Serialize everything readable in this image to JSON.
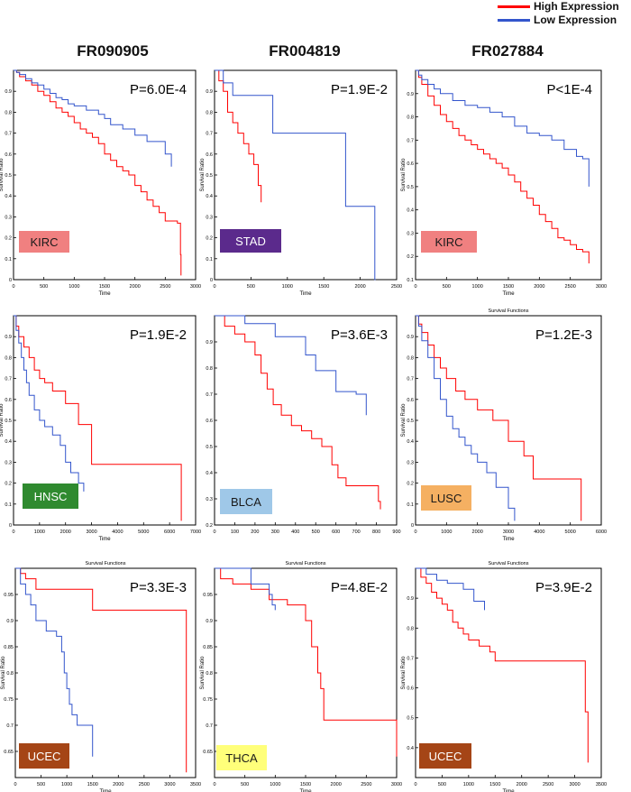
{
  "legend": {
    "high": {
      "label": "High Expression",
      "color": "#ff0000"
    },
    "low": {
      "label": "Low Expression",
      "color": "#3355cc"
    }
  },
  "columns": [
    "FR090905",
    "FR004819",
    "FR027884"
  ],
  "chart_data": [
    {
      "type": "line",
      "cancer": "KIRC",
      "badge_color": "#f08080",
      "badge_text_color": "#1a1a1a",
      "pvalue": "P=6.0E-4",
      "title": "",
      "xlabel": "Time",
      "ylabel": "Survival Ratio",
      "xlim": [
        0,
        3000
      ],
      "ylim": [
        0,
        1.0
      ],
      "xticks": [
        0,
        500,
        1000,
        1500,
        2000,
        2500,
        3000
      ],
      "yticks": [
        0,
        0.1,
        0.2,
        0.3,
        0.4,
        0.5,
        0.6,
        0.7,
        0.8,
        0.9
      ],
      "ytick_labels": [
        "0",
        "0.1",
        "0.2",
        "0.3",
        "0.4",
        "0.5",
        "0.6",
        "0.7",
        "0.8",
        "0.9"
      ],
      "series": [
        {
          "name": "High Expression",
          "color": "#ff0000",
          "x": [
            0,
            50,
            100,
            200,
            300,
            400,
            500,
            600,
            700,
            800,
            900,
            1000,
            1100,
            1200,
            1300,
            1400,
            1500,
            1600,
            1700,
            1800,
            1900,
            2000,
            2100,
            2200,
            2300,
            2400,
            2500,
            2600,
            2700,
            2750,
            2760
          ],
          "y": [
            1.0,
            0.99,
            0.97,
            0.95,
            0.93,
            0.9,
            0.88,
            0.85,
            0.82,
            0.8,
            0.78,
            0.75,
            0.72,
            0.7,
            0.68,
            0.65,
            0.6,
            0.57,
            0.54,
            0.52,
            0.5,
            0.45,
            0.42,
            0.38,
            0.35,
            0.32,
            0.28,
            0.28,
            0.27,
            0.12,
            0.02
          ]
        },
        {
          "name": "Low Expression",
          "color": "#3355cc",
          "x": [
            0,
            50,
            100,
            200,
            300,
            400,
            500,
            600,
            700,
            800,
            900,
            1000,
            1200,
            1400,
            1500,
            1600,
            1800,
            2000,
            2200,
            2400,
            2500,
            2600
          ],
          "y": [
            1.0,
            0.99,
            0.98,
            0.96,
            0.94,
            0.93,
            0.91,
            0.89,
            0.87,
            0.86,
            0.84,
            0.83,
            0.81,
            0.79,
            0.77,
            0.74,
            0.72,
            0.69,
            0.66,
            0.66,
            0.6,
            0.54
          ]
        }
      ]
    },
    {
      "type": "line",
      "cancer": "STAD",
      "badge_color": "#5b2a8c",
      "badge_text_color": "#ffffff",
      "pvalue": "P=1.9E-2",
      "title": "",
      "xlabel": "Time",
      "ylabel": "Survival Ratio",
      "xlim": [
        0,
        2500
      ],
      "ylim": [
        0,
        1.0
      ],
      "xticks": [
        0,
        500,
        1000,
        1500,
        2000,
        2500
      ],
      "yticks": [
        0,
        0.1,
        0.2,
        0.3,
        0.4,
        0.5,
        0.6,
        0.7,
        0.8,
        0.9
      ],
      "ytick_labels": [
        "0",
        "0.1",
        "0.2",
        "0.3",
        "0.4",
        "0.5",
        "0.6",
        "0.7",
        "0.8",
        "0.9"
      ],
      "series": [
        {
          "name": "High Expression",
          "color": "#ff0000",
          "x": [
            0,
            60,
            120,
            180,
            250,
            320,
            400,
            470,
            540,
            600,
            640
          ],
          "y": [
            1.0,
            0.95,
            0.9,
            0.8,
            0.75,
            0.7,
            0.65,
            0.6,
            0.55,
            0.45,
            0.37
          ]
        },
        {
          "name": "Low Expression",
          "color": "#3355cc",
          "x": [
            0,
            120,
            250,
            800,
            1800,
            2200,
            2210
          ],
          "y": [
            1.0,
            0.94,
            0.88,
            0.7,
            0.35,
            0.0,
            0.0
          ]
        }
      ]
    },
    {
      "type": "line",
      "cancer": "KIRC",
      "badge_color": "#f08080",
      "badge_text_color": "#1a1a1a",
      "pvalue": "P<1E-4",
      "title": "",
      "xlabel": "Time",
      "ylabel": "Survival Ratio",
      "xlim": [
        0,
        3000
      ],
      "ylim": [
        0.1,
        1.0
      ],
      "xticks": [
        0,
        500,
        1000,
        1500,
        2000,
        2500,
        3000
      ],
      "yticks": [
        0.1,
        0.2,
        0.3,
        0.4,
        0.5,
        0.6,
        0.7,
        0.8,
        0.9
      ],
      "ytick_labels": [
        "0.1",
        "0.2",
        "0.3",
        "0.4",
        "0.5",
        "0.6",
        "0.7",
        "0.8",
        "0.9"
      ],
      "series": [
        {
          "name": "High Expression",
          "color": "#ff0000",
          "x": [
            0,
            50,
            100,
            200,
            300,
            400,
            500,
            600,
            700,
            800,
            900,
            1000,
            1100,
            1200,
            1300,
            1400,
            1500,
            1600,
            1700,
            1800,
            1900,
            2000,
            2100,
            2200,
            2300,
            2400,
            2500,
            2600,
            2700,
            2800
          ],
          "y": [
            1.0,
            0.97,
            0.94,
            0.89,
            0.85,
            0.81,
            0.78,
            0.75,
            0.72,
            0.7,
            0.68,
            0.66,
            0.64,
            0.62,
            0.6,
            0.58,
            0.55,
            0.52,
            0.48,
            0.45,
            0.42,
            0.38,
            0.35,
            0.32,
            0.28,
            0.27,
            0.25,
            0.23,
            0.22,
            0.17
          ]
        },
        {
          "name": "Low Expression",
          "color": "#3355cc",
          "x": [
            0,
            50,
            100,
            200,
            300,
            400,
            600,
            800,
            1000,
            1200,
            1400,
            1600,
            1800,
            2000,
            2200,
            2400,
            2600,
            2700,
            2800
          ],
          "y": [
            1.0,
            0.98,
            0.96,
            0.94,
            0.92,
            0.9,
            0.87,
            0.85,
            0.84,
            0.82,
            0.8,
            0.76,
            0.73,
            0.72,
            0.7,
            0.66,
            0.63,
            0.62,
            0.5
          ]
        }
      ]
    },
    {
      "type": "line",
      "cancer": "HNSC",
      "badge_color": "#2f8a2f",
      "badge_text_color": "#ffffff",
      "pvalue": "P=1.9E-2",
      "title": "",
      "xlabel": "Time",
      "ylabel": "Survival Ratio",
      "xlim": [
        0,
        7000
      ],
      "ylim": [
        0,
        1.0
      ],
      "xticks": [
        0,
        1000,
        2000,
        3000,
        4000,
        5000,
        6000,
        7000
      ],
      "yticks": [
        0,
        0.1,
        0.2,
        0.3,
        0.4,
        0.5,
        0.6,
        0.7,
        0.8,
        0.9
      ],
      "ytick_labels": [
        "0",
        "0.1",
        "0.2",
        "0.3",
        "0.4",
        "0.5",
        "0.6",
        "0.7",
        "0.8",
        "0.9"
      ],
      "series": [
        {
          "name": "High Expression",
          "color": "#ff0000",
          "x": [
            0,
            100,
            200,
            400,
            600,
            800,
            1000,
            1200,
            1500,
            2000,
            2500,
            3000,
            6400,
            6450
          ],
          "y": [
            1.0,
            0.95,
            0.9,
            0.85,
            0.8,
            0.74,
            0.7,
            0.68,
            0.64,
            0.58,
            0.48,
            0.29,
            0.29,
            0.02
          ]
        },
        {
          "name": "Low Expression",
          "color": "#3355cc",
          "x": [
            0,
            100,
            200,
            300,
            400,
            500,
            600,
            800,
            1000,
            1200,
            1500,
            1800,
            2000,
            2200,
            2500,
            2700
          ],
          "y": [
            1.0,
            0.93,
            0.87,
            0.8,
            0.74,
            0.68,
            0.62,
            0.55,
            0.5,
            0.47,
            0.43,
            0.38,
            0.3,
            0.25,
            0.2,
            0.16
          ]
        }
      ]
    },
    {
      "type": "line",
      "cancer": "BLCA",
      "badge_color": "#9fc8e8",
      "badge_text_color": "#1a1a1a",
      "pvalue": "P=3.6E-3",
      "title": "",
      "xlabel": "",
      "ylabel": "",
      "xlim": [
        0,
        900
      ],
      "ylim": [
        0.2,
        1.0
      ],
      "xticks": [
        0,
        100,
        200,
        300,
        400,
        500,
        600,
        700,
        800,
        900
      ],
      "yticks": [
        0.2,
        0.3,
        0.4,
        0.5,
        0.6,
        0.7,
        0.8,
        0.9
      ],
      "ytick_labels": [
        "0.2",
        "0.3",
        "0.4",
        "0.5",
        "0.6",
        "0.7",
        "0.8",
        "0.9"
      ],
      "series": [
        {
          "name": "High Expression",
          "color": "#ff0000",
          "x": [
            0,
            50,
            100,
            150,
            200,
            230,
            260,
            290,
            330,
            380,
            430,
            480,
            530,
            580,
            610,
            650,
            700,
            760,
            810,
            820
          ],
          "y": [
            1.0,
            0.96,
            0.93,
            0.9,
            0.85,
            0.78,
            0.72,
            0.66,
            0.62,
            0.58,
            0.56,
            0.53,
            0.5,
            0.43,
            0.38,
            0.35,
            0.35,
            0.35,
            0.29,
            0.26
          ]
        },
        {
          "name": "Low Expression",
          "color": "#3355cc",
          "x": [
            0,
            150,
            300,
            450,
            500,
            600,
            700,
            750
          ],
          "y": [
            1.0,
            0.97,
            0.92,
            0.85,
            0.79,
            0.71,
            0.7,
            0.62
          ]
        }
      ]
    },
    {
      "type": "line",
      "cancer": "LUSC",
      "badge_color": "#f5b062",
      "badge_text_color": "#1a1a1a",
      "pvalue": "P=1.2E-3",
      "title": "Survival Functions",
      "xlabel": "Time",
      "ylabel": "Survival Ratio",
      "xlim": [
        0,
        6000
      ],
      "ylim": [
        0,
        1.0
      ],
      "xticks": [
        0,
        1000,
        2000,
        3000,
        4000,
        5000,
        6000
      ],
      "yticks": [
        0,
        0.1,
        0.2,
        0.3,
        0.4,
        0.5,
        0.6,
        0.7,
        0.8,
        0.9
      ],
      "ytick_labels": [
        "0",
        "0.1",
        "0.2",
        "0.3",
        "0.4",
        "0.5",
        "0.6",
        "0.7",
        "0.8",
        "0.9"
      ],
      "series": [
        {
          "name": "High Expression",
          "color": "#ff0000",
          "x": [
            0,
            100,
            200,
            400,
            600,
            800,
            1000,
            1300,
            1600,
            2000,
            2500,
            3000,
            3500,
            3800,
            5300,
            5350
          ],
          "y": [
            1.0,
            0.96,
            0.92,
            0.86,
            0.8,
            0.75,
            0.7,
            0.64,
            0.6,
            0.55,
            0.5,
            0.4,
            0.33,
            0.22,
            0.22,
            0.02
          ]
        },
        {
          "name": "Low Expression",
          "color": "#3355cc",
          "x": [
            0,
            100,
            200,
            400,
            600,
            800,
            1000,
            1200,
            1400,
            1600,
            1800,
            2000,
            2300,
            2600,
            3000,
            3200
          ],
          "y": [
            1.0,
            0.95,
            0.88,
            0.8,
            0.7,
            0.6,
            0.52,
            0.46,
            0.42,
            0.38,
            0.34,
            0.3,
            0.25,
            0.18,
            0.08,
            0.02
          ]
        }
      ]
    },
    {
      "type": "line",
      "cancer": "UCEC",
      "badge_color": "#a54516",
      "badge_text_color": "#ffffff",
      "pvalue": "P=3.3E-3",
      "title": "Survival Functions",
      "xlabel": "Time",
      "ylabel": "Survival Ratio",
      "xlim": [
        0,
        3500
      ],
      "ylim": [
        0.6,
        1.0
      ],
      "xticks": [
        0,
        500,
        1000,
        1500,
        2000,
        2500,
        3000,
        3500
      ],
      "yticks": [
        0.65,
        0.7,
        0.75,
        0.8,
        0.85,
        0.9,
        0.95
      ],
      "ytick_labels": [
        "0.65",
        "0.7",
        "0.75",
        "0.8",
        "0.85",
        "0.9",
        "0.95"
      ],
      "series": [
        {
          "name": "High Expression",
          "color": "#ff0000",
          "x": [
            0,
            100,
            200,
            400,
            1500,
            3300,
            3320
          ],
          "y": [
            1.0,
            0.99,
            0.98,
            0.96,
            0.92,
            0.92,
            0.61
          ]
        },
        {
          "name": "Low Expression",
          "color": "#3355cc",
          "x": [
            0,
            100,
            200,
            300,
            400,
            600,
            800,
            900,
            950,
            1000,
            1050,
            1100,
            1200,
            1500
          ],
          "y": [
            1.0,
            0.97,
            0.95,
            0.93,
            0.9,
            0.88,
            0.87,
            0.84,
            0.8,
            0.77,
            0.74,
            0.72,
            0.7,
            0.64
          ]
        }
      ]
    },
    {
      "type": "line",
      "cancer": "THCA",
      "badge_color": "#ffff7a",
      "badge_text_color": "#1a1a1a",
      "pvalue": "P=4.8E-2",
      "title": "Survival Functions",
      "xlabel": "Time",
      "ylabel": "Survival Ratio",
      "xlim": [
        0,
        3000
      ],
      "ylim": [
        0.6,
        1.0
      ],
      "xticks": [
        0,
        500,
        1000,
        1500,
        2000,
        2500,
        3000
      ],
      "yticks": [
        0.65,
        0.7,
        0.75,
        0.8,
        0.85,
        0.9,
        0.95
      ],
      "ytick_labels": [
        "0.65",
        "0.7",
        "0.75",
        "0.8",
        "0.85",
        "0.9",
        "0.95"
      ],
      "series": [
        {
          "name": "High Expression",
          "color": "#ff0000",
          "x": [
            0,
            100,
            300,
            600,
            900,
            1200,
            1500,
            1600,
            1700,
            1750,
            1800,
            2950,
            3000
          ],
          "y": [
            1.0,
            0.98,
            0.97,
            0.96,
            0.94,
            0.93,
            0.9,
            0.85,
            0.8,
            0.77,
            0.71,
            0.71,
            0.64
          ]
        },
        {
          "name": "Low Expression",
          "color": "#3355cc",
          "x": [
            0,
            400,
            600,
            900,
            950,
            1000
          ],
          "y": [
            1.0,
            1.0,
            0.97,
            0.95,
            0.93,
            0.92
          ]
        }
      ]
    },
    {
      "type": "line",
      "cancer": "UCEC",
      "badge_color": "#a54516",
      "badge_text_color": "#ffffff",
      "pvalue": "P=3.9E-2",
      "title": "Survival Functions",
      "xlabel": "Time",
      "ylabel": "Survival Ratio",
      "xlim": [
        0,
        3500
      ],
      "ylim": [
        0.3,
        1.0
      ],
      "xticks": [
        0,
        500,
        1000,
        1500,
        2000,
        2500,
        3000,
        3500
      ],
      "yticks": [
        0.4,
        0.5,
        0.6,
        0.7,
        0.8,
        0.9
      ],
      "ytick_labels": [
        "0.4",
        "0.5",
        "0.6",
        "0.7",
        "0.8",
        "0.9"
      ],
      "series": [
        {
          "name": "High Expression",
          "color": "#ff0000",
          "x": [
            0,
            100,
            200,
            300,
            400,
            500,
            600,
            700,
            800,
            900,
            1000,
            1200,
            1400,
            1500,
            3100,
            3200,
            3250
          ],
          "y": [
            1.0,
            0.97,
            0.95,
            0.92,
            0.9,
            0.88,
            0.86,
            0.82,
            0.8,
            0.78,
            0.76,
            0.74,
            0.72,
            0.69,
            0.69,
            0.52,
            0.35
          ]
        },
        {
          "name": "Low Expression",
          "color": "#3355cc",
          "x": [
            0,
            200,
            400,
            600,
            900,
            1100,
            1300
          ],
          "y": [
            1.0,
            0.98,
            0.96,
            0.95,
            0.93,
            0.89,
            0.86
          ]
        }
      ]
    }
  ]
}
